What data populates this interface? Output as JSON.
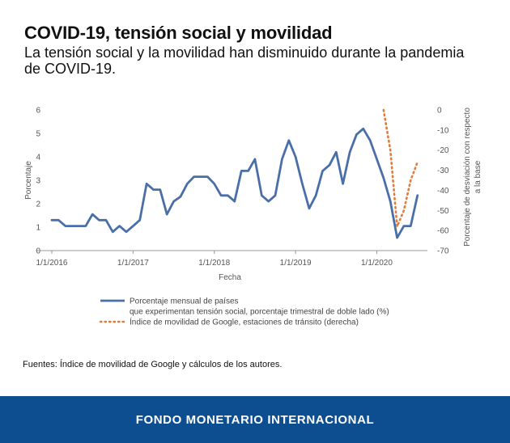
{
  "header": {
    "title": "COVID-19, tensión social y movilidad",
    "subtitle": "La tensión social y la movilidad han disminuido durante la pandemia de COVID-19."
  },
  "source": "Fuentes: Índice de movilidad de Google y cálculos de los autores.",
  "footer": {
    "org": "FONDO MONETARIO INTERNACIONAL"
  },
  "colors": {
    "series_unrest": "#4a6fa8",
    "series_mobility": "#e07b39",
    "footer_bg": "#0d4e91"
  },
  "chart_data": {
    "type": "line",
    "xlabel": "Fecha",
    "ylabel_left": "Porcentaje",
    "ylabel_right": [
      "Porcentaje de desviación con respecto",
      "a la base"
    ],
    "ylim_left": [
      0,
      6
    ],
    "ylim_right": [
      -70,
      0
    ],
    "yticks_left": [
      "0",
      "1",
      "2",
      "3",
      "4",
      "5",
      "6"
    ],
    "yticks_right": [
      "-70",
      "-60",
      "-50",
      "-40",
      "-30",
      "-20",
      "-10",
      "0"
    ],
    "x_range": [
      2016.0,
      2020.583
    ],
    "xticks": [
      {
        "value": 2016,
        "label": "1/1/2016"
      },
      {
        "value": 2017,
        "label": "1/1/2017"
      },
      {
        "value": 2018,
        "label": "1/1/2018"
      },
      {
        "value": 2019,
        "label": "1/1/2019"
      },
      {
        "value": 2020,
        "label": "1/1/2020"
      }
    ],
    "legend_position": "bottom-left",
    "series": [
      {
        "name": "Porcentaje mensual de países",
        "name_line2": "que experimentan tensión social, porcentaje trimestral de doble lado (%)",
        "axis": "left",
        "style": "solid",
        "x": [
          2016.0,
          2016.083,
          2016.167,
          2016.25,
          2016.333,
          2016.417,
          2016.5,
          2016.583,
          2016.667,
          2016.75,
          2016.833,
          2016.917,
          2017.0,
          2017.083,
          2017.167,
          2017.25,
          2017.333,
          2017.417,
          2017.5,
          2017.583,
          2017.667,
          2017.75,
          2017.833,
          2017.917,
          2018.0,
          2018.083,
          2018.167,
          2018.25,
          2018.333,
          2018.417,
          2018.5,
          2018.583,
          2018.667,
          2018.75,
          2018.833,
          2018.917,
          2019.0,
          2019.083,
          2019.167,
          2019.25,
          2019.333,
          2019.417,
          2019.5,
          2019.583,
          2019.667,
          2019.75,
          2019.833,
          2019.917,
          2020.0,
          2020.083,
          2020.167,
          2020.25,
          2020.333,
          2020.417,
          2020.5
        ],
        "values": [
          1.3,
          1.3,
          1.05,
          1.05,
          1.05,
          1.05,
          1.55,
          1.3,
          1.3,
          0.8,
          1.05,
          0.8,
          1.05,
          1.3,
          2.85,
          2.6,
          2.6,
          1.55,
          2.1,
          2.3,
          2.85,
          3.15,
          3.15,
          3.15,
          2.85,
          2.35,
          2.35,
          2.1,
          3.4,
          3.4,
          3.9,
          2.35,
          2.1,
          2.35,
          3.9,
          4.7,
          4.0,
          2.85,
          1.8,
          2.35,
          3.4,
          3.65,
          4.2,
          2.85,
          4.2,
          4.95,
          5.2,
          4.7,
          3.9,
          3.1,
          2.1,
          0.55,
          1.05,
          1.05,
          2.35
        ]
      },
      {
        "name": "Índice de movilidad de Google, estaciones de tránsito (derecha)",
        "axis": "right",
        "style": "dotted",
        "x": [
          2020.083,
          2020.167,
          2020.25,
          2020.333,
          2020.417,
          2020.5
        ],
        "values": [
          0,
          -20,
          -58,
          -50,
          -35,
          -26
        ]
      }
    ]
  }
}
